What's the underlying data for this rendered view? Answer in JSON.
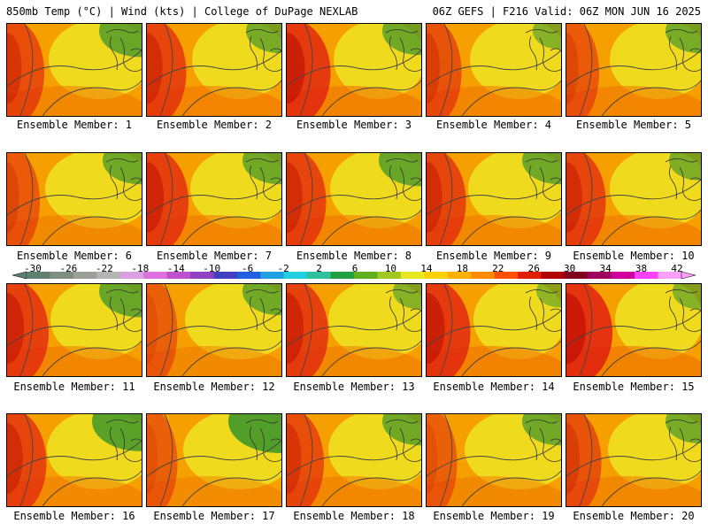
{
  "header": {
    "left": "850mb Temp (°C) | Wind (kts) | College of DuPage NEXLAB",
    "right": "06Z GEFS | F216 Valid: 06Z MON JUN 16 2025"
  },
  "members": [
    {
      "label": "Ensemble Member: 1",
      "warm": 0.55,
      "hot_west": 0.6,
      "green_ne": 0.7
    },
    {
      "label": "Ensemble Member: 2",
      "warm": 0.65,
      "hot_west": 0.7,
      "green_ne": 0.5
    },
    {
      "label": "Ensemble Member: 3",
      "warm": 0.7,
      "hot_west": 0.9,
      "green_ne": 0.6
    },
    {
      "label": "Ensemble Member: 4",
      "warm": 0.6,
      "hot_west": 0.5,
      "green_ne": 0.3
    },
    {
      "label": "Ensemble Member: 5",
      "warm": 0.6,
      "hot_west": 0.4,
      "green_ne": 0.5
    },
    {
      "label": "Ensemble Member: 6",
      "warm": 0.45,
      "hot_west": 0.4,
      "green_ne": 0.6
    },
    {
      "label": "Ensemble Member: 7",
      "warm": 0.6,
      "hot_west": 0.8,
      "green_ne": 0.6
    },
    {
      "label": "Ensemble Member: 8",
      "warm": 0.6,
      "hot_west": 0.7,
      "green_ne": 0.7
    },
    {
      "label": "Ensemble Member: 9",
      "warm": 0.55,
      "hot_west": 0.7,
      "green_ne": 0.6
    },
    {
      "label": "Ensemble Member: 10",
      "warm": 0.6,
      "hot_west": 0.7,
      "green_ne": 0.4
    },
    {
      "label": "Ensemble Member: 11",
      "warm": 0.6,
      "hot_west": 0.8,
      "green_ne": 0.7
    },
    {
      "label": "Ensemble Member: 12",
      "warm": 0.45,
      "hot_west": 0.3,
      "green_ne": 0.6
    },
    {
      "label": "Ensemble Member: 13",
      "warm": 0.55,
      "hot_west": 0.8,
      "green_ne": 0.3
    },
    {
      "label": "Ensemble Member: 14",
      "warm": 0.7,
      "hot_west": 0.9,
      "green_ne": 0.2
    },
    {
      "label": "Ensemble Member: 15",
      "warm": 0.75,
      "hot_west": 1.0,
      "green_ne": 0.3
    },
    {
      "label": "Ensemble Member: 16",
      "warm": 0.5,
      "hot_west": 0.7,
      "green_ne": 0.9
    },
    {
      "label": "Ensemble Member: 17",
      "warm": 0.4,
      "hot_west": 0.3,
      "green_ne": 1.0
    },
    {
      "label": "Ensemble Member: 18",
      "warm": 0.55,
      "hot_west": 0.6,
      "green_ne": 0.6
    },
    {
      "label": "Ensemble Member: 19",
      "warm": 0.45,
      "hot_west": 0.3,
      "green_ne": 0.6
    },
    {
      "label": "Ensemble Member: 20",
      "warm": 0.55,
      "hot_west": 0.5,
      "green_ne": 0.5
    }
  ],
  "colorbar": {
    "ticks": [
      "-30",
      "-26",
      "-22",
      "-18",
      "-14",
      "-10",
      "-6",
      "-2",
      "2",
      "6",
      "10",
      "14",
      "18",
      "22",
      "26",
      "30",
      "34",
      "38",
      "42"
    ],
    "colors": [
      "#5f7f6f",
      "#7d8f80",
      "#9aa095",
      "#b4b4b4",
      "#d8a0e0",
      "#e070e0",
      "#c050d0",
      "#9040c0",
      "#4040c0",
      "#2060e0",
      "#20a0e0",
      "#20d0e0",
      "#30c0a0",
      "#20a040",
      "#60b020",
      "#a0c820",
      "#e8e820",
      "#ffd000",
      "#ffb000",
      "#ff8c00",
      "#ff5000",
      "#e02000",
      "#b00000",
      "#800020",
      "#a00060",
      "#d000a0",
      "#ff40ff",
      "#ffa0ff"
    ]
  },
  "legend_colors": {
    "green": "#4a9a2a",
    "yellow": "#f0e020",
    "orange": "#f5a000",
    "deep_orange": "#f07000",
    "red": "#e02010",
    "dark_red": "#b00000"
  }
}
